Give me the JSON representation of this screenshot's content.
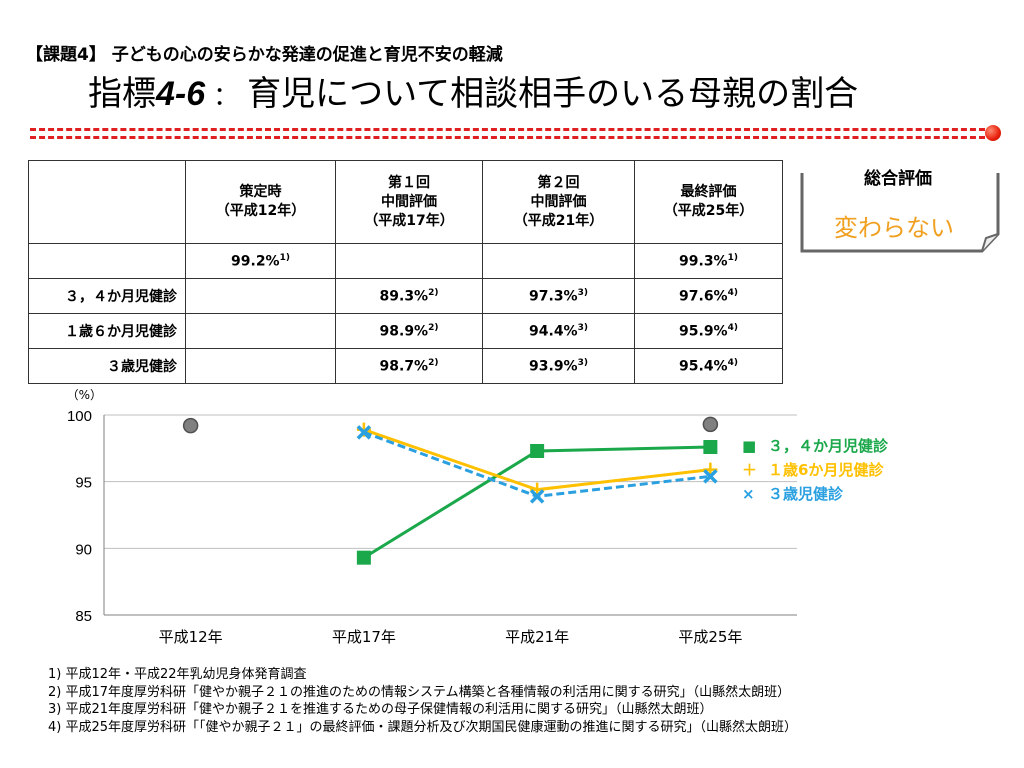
{
  "header": {
    "subject": "【課題4】 子どもの心の安らかな発達の促進と育児不安の軽減",
    "indicator_prefix": "指標",
    "indicator_number": "4-6",
    "indicator_separator": "：",
    "indicator_title": "育児について相談相手のいる母親の割合"
  },
  "evaluation": {
    "label": "総合評価",
    "value": "変わらない",
    "value_color": "#f0a020"
  },
  "table": {
    "headers": [
      "",
      "策定時\n（平成12年）",
      "第１回\n中間評価\n（平成17年）",
      "第２回\n中間評価\n（平成21年）",
      "最終評価\n（平成25年）"
    ],
    "rows": [
      {
        "label": "",
        "cells": [
          {
            "v": "99.2%",
            "s": "1)"
          },
          {
            "v": "",
            "s": ""
          },
          {
            "v": "",
            "s": ""
          },
          {
            "v": "99.3%",
            "s": "1)"
          }
        ]
      },
      {
        "label": "３，４か月児健診",
        "cells": [
          {
            "v": "",
            "s": ""
          },
          {
            "v": "89.3%",
            "s": "2)"
          },
          {
            "v": "97.3%",
            "s": "3)"
          },
          {
            "v": "97.6%",
            "s": "4)"
          }
        ]
      },
      {
        "label": "１歳６か月児健診",
        "cells": [
          {
            "v": "",
            "s": ""
          },
          {
            "v": "98.9%",
            "s": "2)"
          },
          {
            "v": "94.4%",
            "s": "3)"
          },
          {
            "v": "95.9%",
            "s": "4)"
          }
        ]
      },
      {
        "label": "３歳児健診",
        "cells": [
          {
            "v": "",
            "s": ""
          },
          {
            "v": "98.7%",
            "s": "2)"
          },
          {
            "v": "93.9%",
            "s": "3)"
          },
          {
            "v": "95.4%",
            "s": "4)"
          }
        ]
      }
    ]
  },
  "chart_data": {
    "type": "line",
    "unit_label": "（%）",
    "categories": [
      "平成12年",
      "平成17年",
      "平成21年",
      "平成25年"
    ],
    "ylim": [
      85,
      100
    ],
    "yticks": [
      85,
      90,
      95,
      100
    ],
    "grid": true,
    "legend_position": "right",
    "overall": {
      "values": [
        99.2,
        null,
        null,
        99.3
      ],
      "color": "#808080"
    },
    "series": [
      {
        "name": "３，４か月児健診",
        "legend_marker": "■",
        "marker": "square",
        "dashed": false,
        "color": "#1aa84a",
        "values": [
          null,
          89.3,
          97.3,
          97.6
        ]
      },
      {
        "name": "１歳6か月児健診",
        "legend_marker": "＋",
        "marker": "plus",
        "dashed": false,
        "color": "#ffc000",
        "values": [
          null,
          98.9,
          94.4,
          95.9
        ]
      },
      {
        "name": "３歳児健診",
        "legend_marker": "×",
        "marker": "x",
        "dashed": true,
        "color": "#2aa0e0",
        "values": [
          null,
          98.7,
          93.9,
          95.4
        ]
      }
    ]
  },
  "footnotes": [
    "1) 平成12年・平成22年乳幼児身体発育調査",
    "2) 平成17年度厚労科研「健やか親子２１の推進のための情報システム構築と各種情報の利活用に関する研究」（山縣然太朗班）",
    "3) 平成21年度厚労科研「健やか親子２１を推進するための母子保健情報の利活用に関する研究」（山縣然太朗班）",
    "4) 平成25年度厚労科研「「健やか親子２１」の最終評価・課題分析及び次期国民健康運動の推進に関する研究」（山縣然太朗班）"
  ]
}
